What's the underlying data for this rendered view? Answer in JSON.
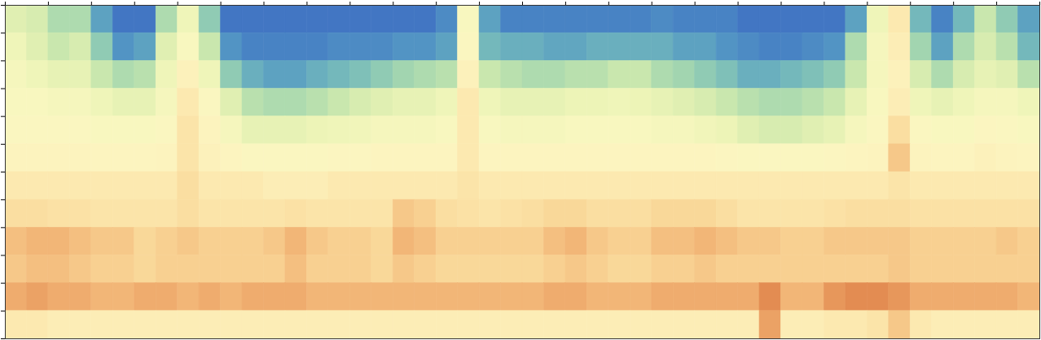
{
  "chart_data": {
    "type": "heatmap",
    "x": [
      0,
      0.5,
      1,
      1.5,
      2,
      2.5,
      3,
      3.5,
      4,
      4.5,
      5,
      5.5,
      6,
      6.5,
      7,
      7.5,
      8,
      8.5,
      9,
      9.5,
      10,
      10.5,
      11,
      11.5,
      12,
      12.5,
      13,
      13.5,
      14,
      14.5,
      15,
      15.5,
      16,
      16.5,
      17,
      17.5,
      18,
      18.5,
      19,
      19.5,
      20,
      20.5,
      21,
      21.5,
      22,
      22.5,
      23,
      23.5,
      24
    ],
    "y": [
      12,
      11,
      10,
      9,
      8,
      7,
      6,
      5,
      4,
      3,
      2,
      1,
      0
    ],
    "values": [
      [
        40,
        38,
        30,
        30,
        15,
        5,
        5,
        30,
        45,
        25,
        5,
        5,
        5,
        5,
        5,
        5,
        5,
        5,
        5,
        5,
        10,
        50,
        15,
        8,
        8,
        8,
        8,
        8,
        8,
        8,
        10,
        8,
        8,
        8,
        5,
        5,
        5,
        5,
        5,
        15,
        45,
        62,
        20,
        8,
        20,
        35,
        25,
        15
      ],
      [
        45,
        40,
        35,
        38,
        25,
        12,
        15,
        40,
        50,
        35,
        12,
        8,
        8,
        8,
        8,
        10,
        10,
        10,
        12,
        12,
        15,
        52,
        20,
        18,
        18,
        16,
        16,
        18,
        18,
        18,
        18,
        15,
        15,
        12,
        10,
        8,
        8,
        10,
        12,
        30,
        48,
        60,
        28,
        15,
        30,
        38,
        32,
        20
      ],
      [
        48,
        45,
        42,
        42,
        35,
        30,
        32,
        45,
        58,
        45,
        25,
        18,
        15,
        15,
        18,
        20,
        22,
        25,
        28,
        30,
        32,
        58,
        35,
        32,
        30,
        30,
        32,
        32,
        35,
        35,
        30,
        28,
        25,
        22,
        18,
        18,
        20,
        22,
        25,
        35,
        48,
        58,
        38,
        30,
        38,
        42,
        40,
        32
      ],
      [
        50,
        50,
        48,
        48,
        45,
        42,
        42,
        48,
        62,
        52,
        40,
        32,
        30,
        30,
        32,
        35,
        38,
        40,
        42,
        42,
        45,
        62,
        45,
        42,
        42,
        42,
        44,
        44,
        45,
        44,
        42,
        40,
        38,
        35,
        32,
        30,
        30,
        32,
        35,
        42,
        50,
        60,
        45,
        42,
        45,
        48,
        48,
        45
      ],
      [
        52,
        52,
        52,
        52,
        50,
        50,
        50,
        52,
        64,
        56,
        48,
        42,
        42,
        42,
        44,
        45,
        46,
        48,
        48,
        48,
        50,
        62,
        50,
        48,
        48,
        48,
        50,
        50,
        50,
        50,
        48,
        48,
        46,
        44,
        40,
        38,
        38,
        40,
        42,
        48,
        52,
        66,
        52,
        50,
        50,
        54,
        52,
        50
      ],
      [
        56,
        56,
        56,
        56,
        55,
        55,
        55,
        56,
        64,
        58,
        55,
        52,
        52,
        52,
        52,
        54,
        54,
        55,
        55,
        55,
        55,
        62,
        55,
        55,
        55,
        55,
        55,
        55,
        55,
        55,
        55,
        55,
        55,
        54,
        52,
        52,
        52,
        52,
        54,
        55,
        56,
        72,
        56,
        55,
        55,
        58,
        56,
        55
      ],
      [
        62,
        62,
        62,
        62,
        62,
        62,
        62,
        62,
        66,
        62,
        62,
        62,
        60,
        60,
        60,
        62,
        62,
        62,
        62,
        62,
        62,
        64,
        62,
        62,
        62,
        62,
        62,
        62,
        62,
        62,
        62,
        62,
        62,
        62,
        62,
        62,
        62,
        62,
        62,
        62,
        62,
        64,
        62,
        62,
        62,
        62,
        62,
        62
      ],
      [
        66,
        66,
        65,
        65,
        64,
        64,
        64,
        64,
        66,
        64,
        64,
        64,
        64,
        65,
        64,
        64,
        64,
        64,
        72,
        70,
        66,
        65,
        64,
        65,
        66,
        68,
        68,
        66,
        66,
        66,
        68,
        68,
        68,
        66,
        64,
        64,
        64,
        64,
        65,
        66,
        66,
        66,
        65,
        65,
        65,
        65,
        65,
        65
      ],
      [
        74,
        76,
        76,
        74,
        72,
        72,
        68,
        70,
        72,
        70,
        70,
        70,
        72,
        76,
        72,
        70,
        70,
        68,
        76,
        74,
        70,
        70,
        70,
        70,
        70,
        74,
        76,
        72,
        70,
        70,
        74,
        74,
        76,
        74,
        72,
        72,
        70,
        70,
        72,
        72,
        72,
        72,
        70,
        70,
        70,
        70,
        72,
        70
      ],
      [
        72,
        74,
        74,
        72,
        70,
        70,
        68,
        70,
        70,
        70,
        70,
        70,
        70,
        74,
        70,
        70,
        70,
        68,
        72,
        70,
        68,
        68,
        68,
        68,
        68,
        70,
        72,
        70,
        68,
        68,
        70,
        70,
        72,
        70,
        70,
        70,
        70,
        70,
        70,
        70,
        70,
        72,
        70,
        70,
        70,
        70,
        70,
        70
      ],
      [
        78,
        80,
        78,
        78,
        76,
        76,
        78,
        78,
        76,
        78,
        76,
        78,
        78,
        78,
        76,
        76,
        76,
        76,
        76,
        76,
        76,
        76,
        76,
        76,
        76,
        78,
        78,
        76,
        76,
        76,
        78,
        78,
        78,
        78,
        78,
        84,
        76,
        76,
        82,
        84,
        84,
        82,
        78,
        78,
        78,
        78,
        78,
        76
      ],
      [
        62,
        62,
        60,
        60,
        60,
        60,
        60,
        60,
        60,
        60,
        60,
        60,
        60,
        60,
        60,
        60,
        60,
        60,
        60,
        60,
        60,
        60,
        60,
        60,
        60,
        60,
        60,
        60,
        60,
        60,
        60,
        60,
        60,
        60,
        60,
        80,
        60,
        60,
        62,
        62,
        64,
        72,
        62,
        60,
        60,
        60,
        60,
        60
      ]
    ],
    "zlim": [
      0,
      100
    ],
    "xlim": [
      0,
      24
    ],
    "ylim": [
      0,
      12
    ],
    "xticks": [
      0,
      1,
      2,
      3,
      4,
      5,
      6,
      7,
      8,
      9,
      10,
      11,
      12,
      13,
      14,
      15,
      16,
      17,
      18,
      19,
      20,
      21,
      22,
      23,
      24
    ],
    "yticks": [
      0,
      1,
      2,
      3,
      4,
      5,
      6,
      7,
      8,
      9,
      10,
      11,
      12
    ],
    "tick_labels": false
  }
}
